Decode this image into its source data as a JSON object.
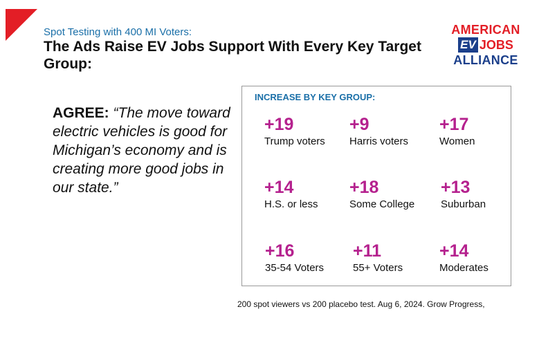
{
  "header": {
    "subtitle": "Spot Testing with 400 MI Voters:",
    "title": "The Ads Raise EV Jobs Support With Every Key Target Group:"
  },
  "logo": {
    "line1": "AMERICAN",
    "ev": "EV",
    "jobs": "JOBS",
    "line3": "ALLIANCE"
  },
  "quote": {
    "agree": "AGREE:",
    "text": "“The move toward electric vehicles is good for Michigan’s economy and is creating more good jobs in our state.”"
  },
  "panel": {
    "heading": "INCREASE BY KEY GROUP:",
    "stats": [
      {
        "value": "+19",
        "label": "Trump voters"
      },
      {
        "value": "+9",
        "label": "Harris voters"
      },
      {
        "value": "+17",
        "label": "Women"
      },
      {
        "value": "+14",
        "label": "H.S. or less"
      },
      {
        "value": "+18",
        "label": "Some College"
      },
      {
        "value": "+13",
        "label": "Suburban"
      },
      {
        "value": "+16",
        "label": "35-54 Voters"
      },
      {
        "value": "+11",
        "label": "55+ Voters"
      },
      {
        "value": "+14",
        "label": "Moderates"
      }
    ]
  },
  "footnote": "200 spot viewers vs 200 placebo test. Aug 6, 2024. Grow Progress,",
  "colors": {
    "accent_red": "#e31e26",
    "accent_blue": "#1a6fa8",
    "stat_magenta": "#b5218e",
    "logo_navy": "#1b3f8b"
  }
}
